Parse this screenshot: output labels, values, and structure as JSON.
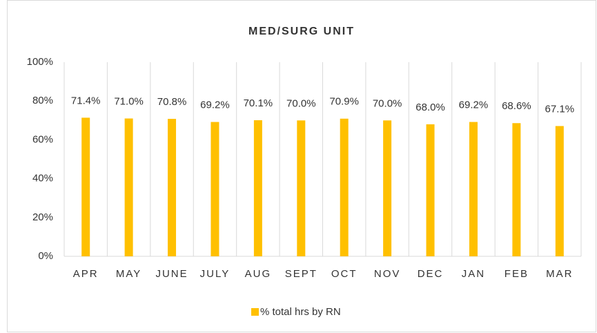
{
  "chart_data": {
    "type": "bar",
    "title": "MED/SURG UNIT",
    "categories": [
      "APR",
      "MAY",
      "JUNE",
      "JULY",
      "AUG",
      "SEPT",
      "OCT",
      "NOV",
      "DEC",
      "JAN",
      "FEB",
      "MAR"
    ],
    "series": [
      {
        "name": "% total hrs by RN",
        "color": "#ffc000",
        "values": [
          71.4,
          71.0,
          70.8,
          69.2,
          70.1,
          70.0,
          70.9,
          70.0,
          68.0,
          69.2,
          68.6,
          67.1
        ],
        "value_labels": [
          "71.4%",
          "71.0%",
          "70.8%",
          "69.2%",
          "70.1%",
          "70.0%",
          "70.9%",
          "70.0%",
          "68.0%",
          "69.2%",
          "68.6%",
          "67.1%"
        ]
      }
    ],
    "ylim": [
      0,
      100
    ],
    "yticks": [
      {
        "value": 0,
        "label": "0%"
      },
      {
        "value": 20,
        "label": "20%"
      },
      {
        "value": 40,
        "label": "40%"
      },
      {
        "value": 60,
        "label": "60%"
      },
      {
        "value": 80,
        "label": "80%"
      },
      {
        "value": 100,
        "label": "100%"
      }
    ],
    "legend": "bottom"
  }
}
